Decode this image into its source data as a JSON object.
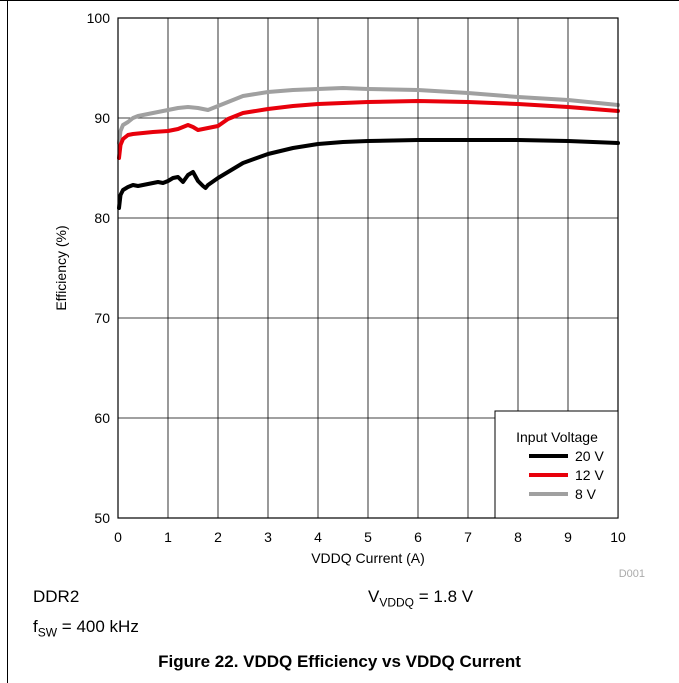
{
  "page": {
    "conditions_left_1": "DDR2",
    "conditions_left_2_main": "f",
    "conditions_left_2_sub": "SW",
    "conditions_left_2_rest": " = 400 kHz",
    "conditions_right_main": "V",
    "conditions_right_sub": "VDDQ",
    "conditions_right_rest": " = 1.8 V",
    "figure_caption": "Figure 22. VDDQ Efficiency vs VDDQ Current",
    "figure_code": "D001"
  },
  "chart_data": {
    "type": "line",
    "title": "",
    "xlabel": "VDDQ Current  (A)",
    "ylabel": "Efficiency (%)",
    "xlim": [
      0,
      10
    ],
    "ylim": [
      50,
      100
    ],
    "xticks": [
      0,
      1,
      2,
      3,
      4,
      5,
      6,
      7,
      8,
      9,
      10
    ],
    "yticks": [
      50,
      60,
      70,
      80,
      90,
      100
    ],
    "grid": true,
    "legend": {
      "title": "Input Voltage",
      "position": "bottom-right"
    },
    "series": [
      {
        "name": "20 V",
        "color": "#000000",
        "x": [
          0.02,
          0.05,
          0.1,
          0.2,
          0.3,
          0.4,
          0.6,
          0.8,
          0.9,
          1.0,
          1.1,
          1.2,
          1.3,
          1.4,
          1.5,
          1.6,
          1.7,
          1.75,
          1.8,
          2.0,
          2.2,
          2.5,
          3.0,
          3.5,
          4.0,
          4.5,
          5.0,
          6.0,
          7.0,
          8.0,
          9.0,
          10.0
        ],
        "y": [
          81.0,
          82.3,
          82.8,
          83.1,
          83.3,
          83.2,
          83.4,
          83.6,
          83.5,
          83.7,
          84.0,
          84.1,
          83.6,
          84.3,
          84.6,
          83.7,
          83.2,
          83.0,
          83.3,
          84.0,
          84.6,
          85.5,
          86.4,
          87.0,
          87.4,
          87.6,
          87.7,
          87.8,
          87.8,
          87.8,
          87.7,
          87.5
        ]
      },
      {
        "name": "12 V",
        "color": "#e8000b",
        "x": [
          0.02,
          0.05,
          0.1,
          0.2,
          0.3,
          0.5,
          0.7,
          1.0,
          1.2,
          1.3,
          1.4,
          1.5,
          1.6,
          1.8,
          2.0,
          2.2,
          2.5,
          3.0,
          3.5,
          4.0,
          4.5,
          5.0,
          6.0,
          7.0,
          8.0,
          9.0,
          10.0
        ],
        "y": [
          86.0,
          87.3,
          87.9,
          88.3,
          88.4,
          88.5,
          88.6,
          88.7,
          88.9,
          89.1,
          89.3,
          89.1,
          88.8,
          89.0,
          89.2,
          89.9,
          90.5,
          90.9,
          91.2,
          91.4,
          91.5,
          91.6,
          91.7,
          91.6,
          91.4,
          91.1,
          90.7
        ]
      },
      {
        "name": "8 V",
        "color": "#a0a0a0",
        "x": [
          0.02,
          0.05,
          0.1,
          0.2,
          0.3,
          0.4,
          0.6,
          0.8,
          1.0,
          1.2,
          1.4,
          1.6,
          1.8,
          1.9,
          2.0,
          2.2,
          2.5,
          3.0,
          3.5,
          4.0,
          4.5,
          5.0,
          6.0,
          7.0,
          8.0,
          9.0,
          10.0
        ],
        "y": [
          87.5,
          88.7,
          89.3,
          89.6,
          90.0,
          90.2,
          90.4,
          90.6,
          90.8,
          91.0,
          91.1,
          91.0,
          90.8,
          91.0,
          91.2,
          91.6,
          92.2,
          92.6,
          92.8,
          92.9,
          93.0,
          92.9,
          92.8,
          92.5,
          92.1,
          91.8,
          91.3
        ]
      }
    ]
  }
}
